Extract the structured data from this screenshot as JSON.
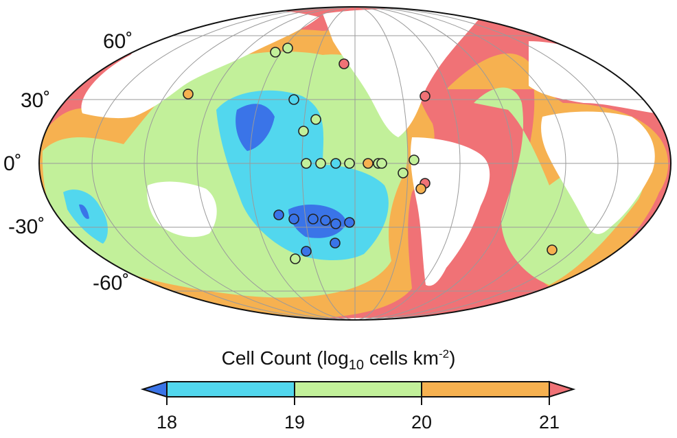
{
  "map": {
    "projection": "Mollweide",
    "center": "Pacific",
    "colors": {
      "land": "#ffffff",
      "ocean_18": "#3a74e8",
      "ocean_18_19": "#52d7ee",
      "ocean_19_20": "#c2f09a",
      "ocean_20_21": "#f6b150",
      "ocean_21": "#f07276",
      "outline": "#111111",
      "graticule": "#9a9a9a"
    },
    "lat_labels": [
      "60˚",
      "30˚",
      "0˚",
      "-30˚",
      "-60˚"
    ],
    "sample_sites": [
      {
        "cls": "19-20"
      },
      {
        "cls": "19-20"
      },
      {
        "cls": ">21"
      },
      {
        "cls": "20-21"
      },
      {
        "cls": "18-19"
      },
      {
        "cls": "19-20"
      },
      {
        "cls": "19-20"
      },
      {
        "cls": "19-20"
      },
      {
        "cls": "19-20"
      },
      {
        "cls": "18-19"
      },
      {
        "cls": "19-20"
      },
      {
        "cls": "20-21"
      },
      {
        "cls": "19-20"
      },
      {
        "cls": "19-20"
      },
      {
        "cls": "19-20"
      },
      {
        "cls": "19-20"
      },
      {
        "cls": ">21"
      },
      {
        "cls": "20-21"
      },
      {
        "cls": ">21"
      },
      {
        "cls": "<18"
      },
      {
        "cls": "<18"
      },
      {
        "cls": "<18"
      },
      {
        "cls": "<18"
      },
      {
        "cls": "<18"
      },
      {
        "cls": "<18"
      },
      {
        "cls": "<18"
      },
      {
        "cls": "<18"
      },
      {
        "cls": "19-20"
      },
      {
        "cls": "20-21"
      }
    ]
  },
  "colorbar": {
    "title_pre": "Cell Count (log",
    "title_sub": "10",
    "title_mid": " cells km",
    "title_sup": "-2",
    "title_post": ")",
    "ticks": [
      "18",
      "19",
      "20",
      "21"
    ],
    "bins": [
      {
        "label": "18-19",
        "color": "#52d7ee"
      },
      {
        "label": "19-20",
        "color": "#c2f09a"
      },
      {
        "label": "20-21",
        "color": "#f6b150"
      }
    ],
    "under_color": "#3a74e8",
    "over_color": "#f07276"
  }
}
